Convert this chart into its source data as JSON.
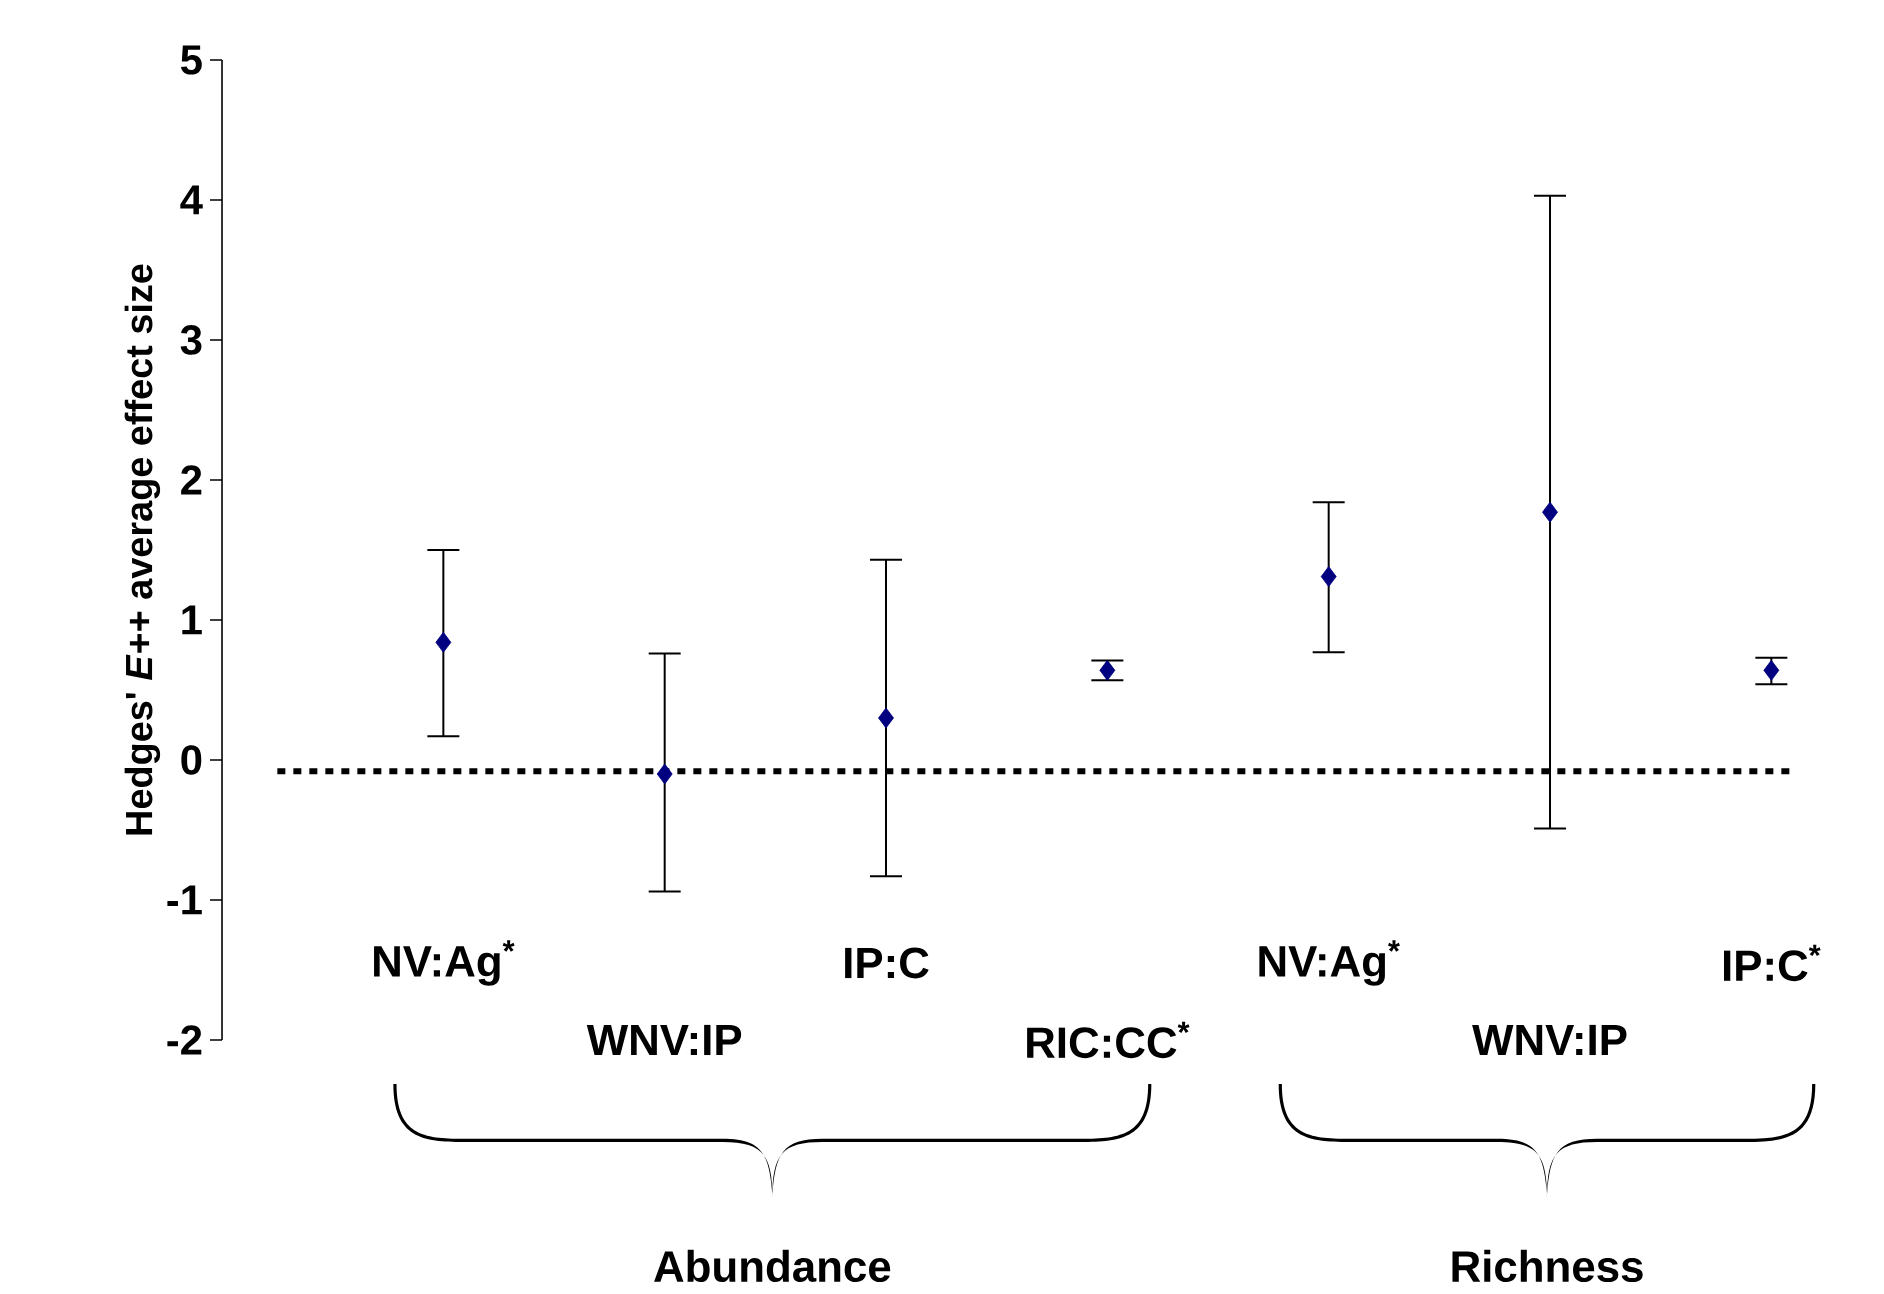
{
  "chart_data": {
    "type": "scatter",
    "ylabel": "Hedges' *E*++ average effect size",
    "categories": [
      "NV:Ag$^{*}$",
      "WNV:IP",
      "IP:C",
      "RIC:CC$^{*}$",
      "NV:Ag$^{*}$",
      "WNV:IP",
      "IP:C$^{*}$"
    ],
    "values": [
      0.84,
      -0.1,
      0.3,
      0.64,
      1.31,
      1.77,
      0.64
    ],
    "errors": [
      [
        0.17,
        1.5
      ],
      [
        -0.94,
        0.76
      ],
      [
        -0.83,
        1.43
      ],
      [
        0.57,
        0.71
      ],
      [
        0.77,
        1.84
      ],
      [
        -0.49,
        4.03
      ],
      [
        0.54,
        0.73
      ]
    ],
    "color": "#000080",
    "marker": "diamond",
    "ylim": [
      -2,
      5
    ],
    "yticks": [
      -2,
      -1,
      0,
      1,
      2,
      3,
      4,
      5
    ],
    "ref_lines": [
      {
        "axis": "y",
        "value": -0.08,
        "color": "#000000",
        "line_style": "dotted"
      }
    ],
    "annotations": [
      "Abundance",
      "Richness"
    ],
    "grid": false
  }
}
